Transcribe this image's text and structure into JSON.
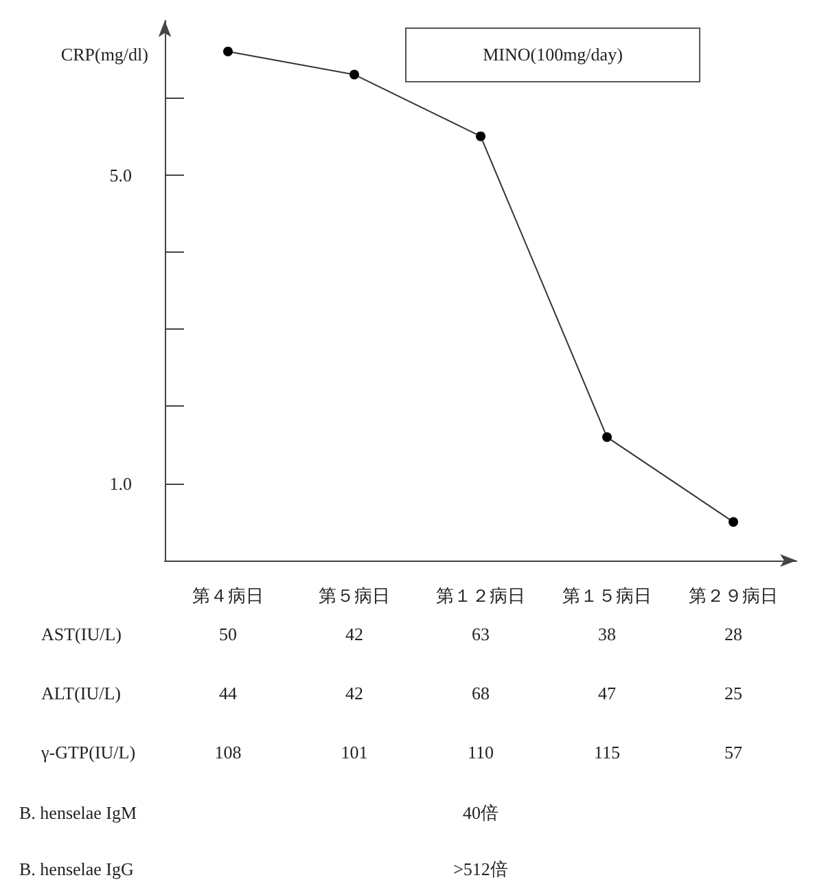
{
  "chart_data": {
    "type": "line",
    "ylabel": "CRP(mg/dl)",
    "categories": [
      "第４病日",
      "第５病日",
      "第１２病日",
      "第１５病日",
      "第２９病日"
    ],
    "series": [
      {
        "color": "#000000",
        "values": [
          6.6,
          6.3,
          5.5,
          1.6,
          0.5
        ]
      }
    ],
    "ylim": [
      0,
      7
    ],
    "yticks": [
      {
        "value": 1,
        "label": "1.0"
      },
      {
        "value": 2,
        "label": null
      },
      {
        "value": 3,
        "label": null
      },
      {
        "value": 4,
        "label": null
      },
      {
        "value": 5,
        "label": "5.0"
      },
      {
        "value": 6,
        "label": null
      }
    ],
    "marker": "circle",
    "line_style": "solid",
    "annotations": [
      "MINO(100mg/day)",
      "AST(IU/L)",
      "50",
      "42",
      "63",
      "38",
      "28",
      "ALT(IU/L)",
      "44",
      "42",
      "68",
      "47",
      "25",
      "γ-GTP(IU/L)",
      "108",
      "101",
      "110",
      "115",
      "57",
      "B. henselae IgM",
      "40倍",
      "B. henselae IgG",
      ">512倍"
    ]
  }
}
